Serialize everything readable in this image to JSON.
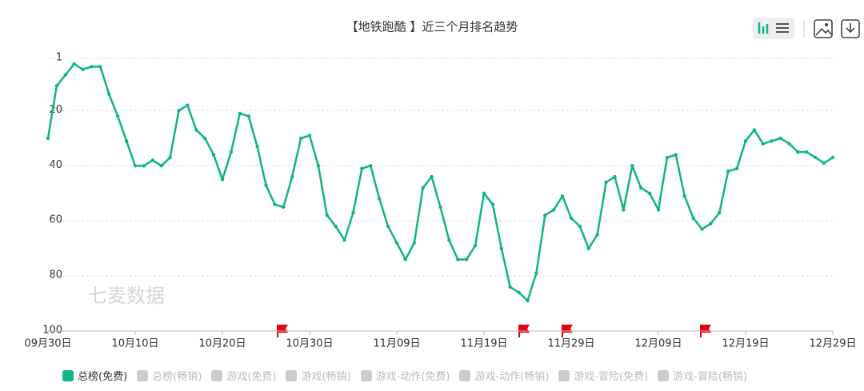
{
  "chart_data": {
    "type": "line",
    "title": "【地铁跑酷 】近三个月排名趋势",
    "watermark": "七麦数据",
    "categories": [
      "09月30日",
      null,
      null,
      null,
      null,
      null,
      null,
      null,
      null,
      null,
      "10月10日",
      null,
      null,
      null,
      null,
      null,
      null,
      null,
      null,
      null,
      "10月20日",
      null,
      null,
      null,
      null,
      null,
      null,
      null,
      null,
      null,
      "10月30日",
      null,
      null,
      null,
      null,
      null,
      null,
      null,
      null,
      null,
      "11月09日",
      null,
      null,
      null,
      null,
      null,
      null,
      null,
      null,
      null,
      "11月19日",
      null,
      null,
      null,
      null,
      null,
      null,
      null,
      null,
      null,
      "11月29日",
      null,
      null,
      null,
      null,
      null,
      null,
      null,
      null,
      null,
      "12月09日",
      null,
      null,
      null,
      null,
      null,
      null,
      null,
      null,
      null,
      "12月19日",
      null,
      null,
      null,
      null,
      null,
      null,
      null,
      null,
      null,
      "12月29日"
    ],
    "series": [
      {
        "name": "总榜(免费)",
        "color": "#10b38b",
        "values": [
          30,
          11,
          7,
          3,
          5,
          4,
          4,
          14,
          22,
          31,
          40,
          40,
          38,
          40,
          37,
          20,
          18,
          27,
          30,
          36,
          45,
          35,
          21,
          22,
          33,
          47,
          54,
          55,
          44,
          30,
          29,
          40,
          58,
          62,
          67,
          57,
          41,
          40,
          52,
          62,
          68,
          74,
          68,
          48,
          44,
          55,
          67,
          74,
          74,
          69,
          50,
          54,
          70,
          84,
          86,
          89,
          79,
          58,
          56,
          51,
          59,
          62,
          70,
          65,
          46,
          44,
          56,
          40,
          48,
          50,
          56,
          37,
          36,
          51,
          59,
          63,
          61,
          57,
          42,
          41,
          31,
          27,
          32,
          31,
          30,
          32,
          35,
          35,
          37,
          39,
          37
        ]
      }
    ],
    "disabled_series": [
      "总榜(畅销)",
      "游戏(免费)",
      "游戏(畅销)",
      "游戏-动作(免费)",
      "游戏-动作(畅销)",
      "游戏-冒险(免费)",
      "游戏-冒险(畅销)"
    ],
    "disabled_color": "#cccccc",
    "ylim": [
      1,
      100
    ],
    "y_inverted": true,
    "yticks": [
      1,
      20,
      40,
      60,
      80,
      100
    ],
    "grid": true
  }
}
